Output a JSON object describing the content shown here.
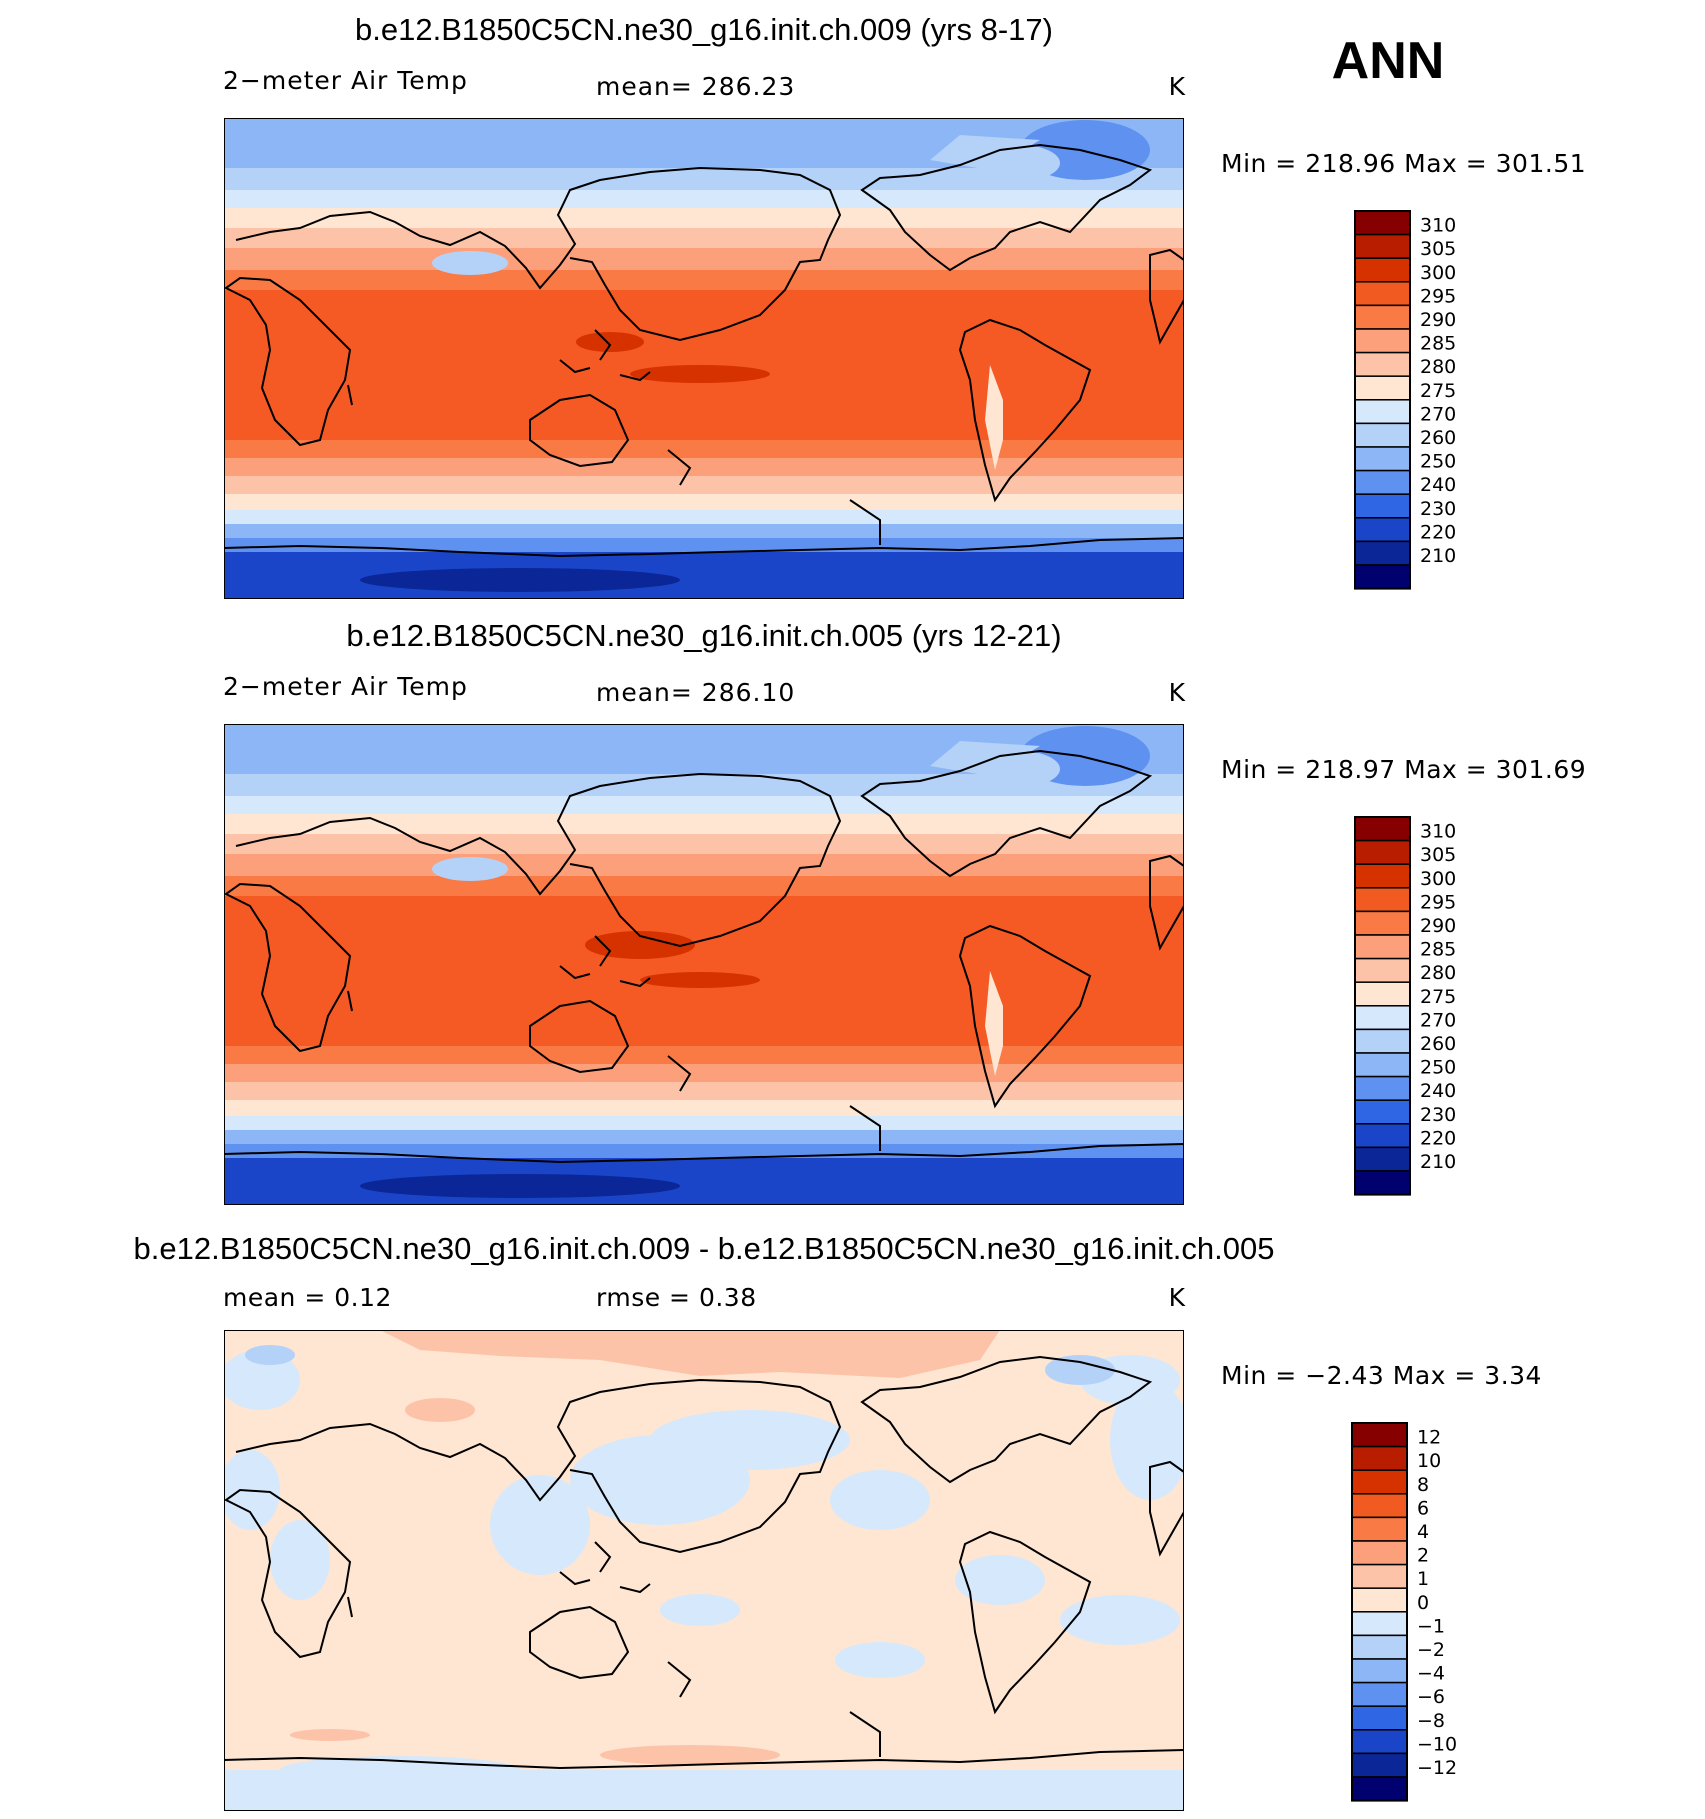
{
  "season": "ANN",
  "units": "K",
  "panels": [
    {
      "id": "case",
      "title": "b.e12.B1850C5CN.ne30_g16.init.ch.009 (yrs 8-17)",
      "left_label": "2−meter Air Temp",
      "center_label": "mean=  286.23",
      "units": "K",
      "stats": "Min  =  218.96  Max  =  301.51",
      "colorbar_levels": [
        "310",
        "305",
        "300",
        "295",
        "290",
        "285",
        "280",
        "275",
        "270",
        "260",
        "250",
        "240",
        "230",
        "220",
        "210"
      ]
    },
    {
      "id": "control",
      "title": "b.e12.B1850C5CN.ne30_g16.init.ch.005 (yrs 12-21)",
      "left_label": "2−meter Air Temp",
      "center_label": "mean=  286.10",
      "units": "K",
      "stats": "Min  =  218.97  Max  =  301.69",
      "colorbar_levels": [
        "310",
        "305",
        "300",
        "295",
        "290",
        "285",
        "280",
        "275",
        "270",
        "260",
        "250",
        "240",
        "230",
        "220",
        "210"
      ]
    },
    {
      "id": "difference",
      "title": "b.e12.B1850C5CN.ne30_g16.init.ch.009 - b.e12.B1850C5CN.ne30_g16.init.ch.005",
      "left_label": "mean  =      0.12",
      "center_label": "rmse  =      0.38",
      "units": "K",
      "stats": "Min  =    −2.43  Max  =      3.34",
      "colorbar_levels": [
        "12",
        "10",
        "8",
        "6",
        "4",
        "2",
        "1",
        "0",
        "−1",
        "−2",
        "−4",
        "−6",
        "−8",
        "−10",
        "−12"
      ]
    }
  ],
  "colors": {
    "abs_palette": [
      "#870000",
      "#b81d00",
      "#d63200",
      "#f15a20",
      "#fa7a45",
      "#fca07c",
      "#fdc3a8",
      "#fee6d2",
      "#d6e8fb",
      "#b4d2f8",
      "#8cb6f6",
      "#5f92f0",
      "#2f66e3",
      "#1a45c9",
      "#0b2696",
      "#00006e"
    ],
    "diff_palette": [
      "#870000",
      "#b81d00",
      "#d63200",
      "#f15a20",
      "#fa7a45",
      "#fca07c",
      "#fdc3a8",
      "#fee6d2",
      "#d6e8fb",
      "#b4d2f8",
      "#8cb6f6",
      "#5f92f0",
      "#2f66e3",
      "#1a45c9",
      "#0b2696",
      "#00006e"
    ]
  }
}
